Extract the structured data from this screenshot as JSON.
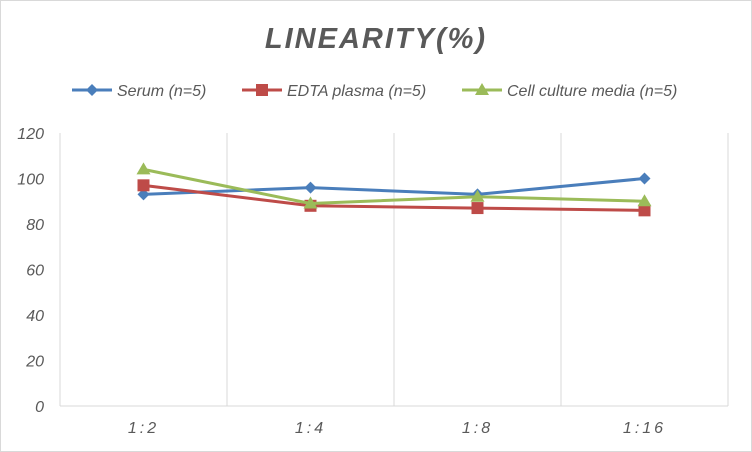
{
  "chart_data": {
    "type": "line",
    "title": "LINEARITY(%)",
    "categories": [
      "1:2",
      "1:4",
      "1:8",
      "1:16"
    ],
    "ylim": [
      0,
      120
    ],
    "yticks": [
      0,
      20,
      40,
      60,
      80,
      100,
      120
    ],
    "grid": "vertical",
    "legend_position": "top",
    "series": [
      {
        "name": "Serum (n=5)",
        "color": "#4a7ebb",
        "marker": "diamond",
        "values": [
          93,
          96,
          93,
          100
        ]
      },
      {
        "name": "EDTA plasma (n=5)",
        "color": "#be4b48",
        "marker": "square",
        "values": [
          97,
          88,
          87,
          86
        ]
      },
      {
        "name": "Cell culture media (n=5)",
        "color": "#9bbb59",
        "marker": "triangle",
        "values": [
          104,
          89,
          92,
          90
        ]
      }
    ]
  }
}
